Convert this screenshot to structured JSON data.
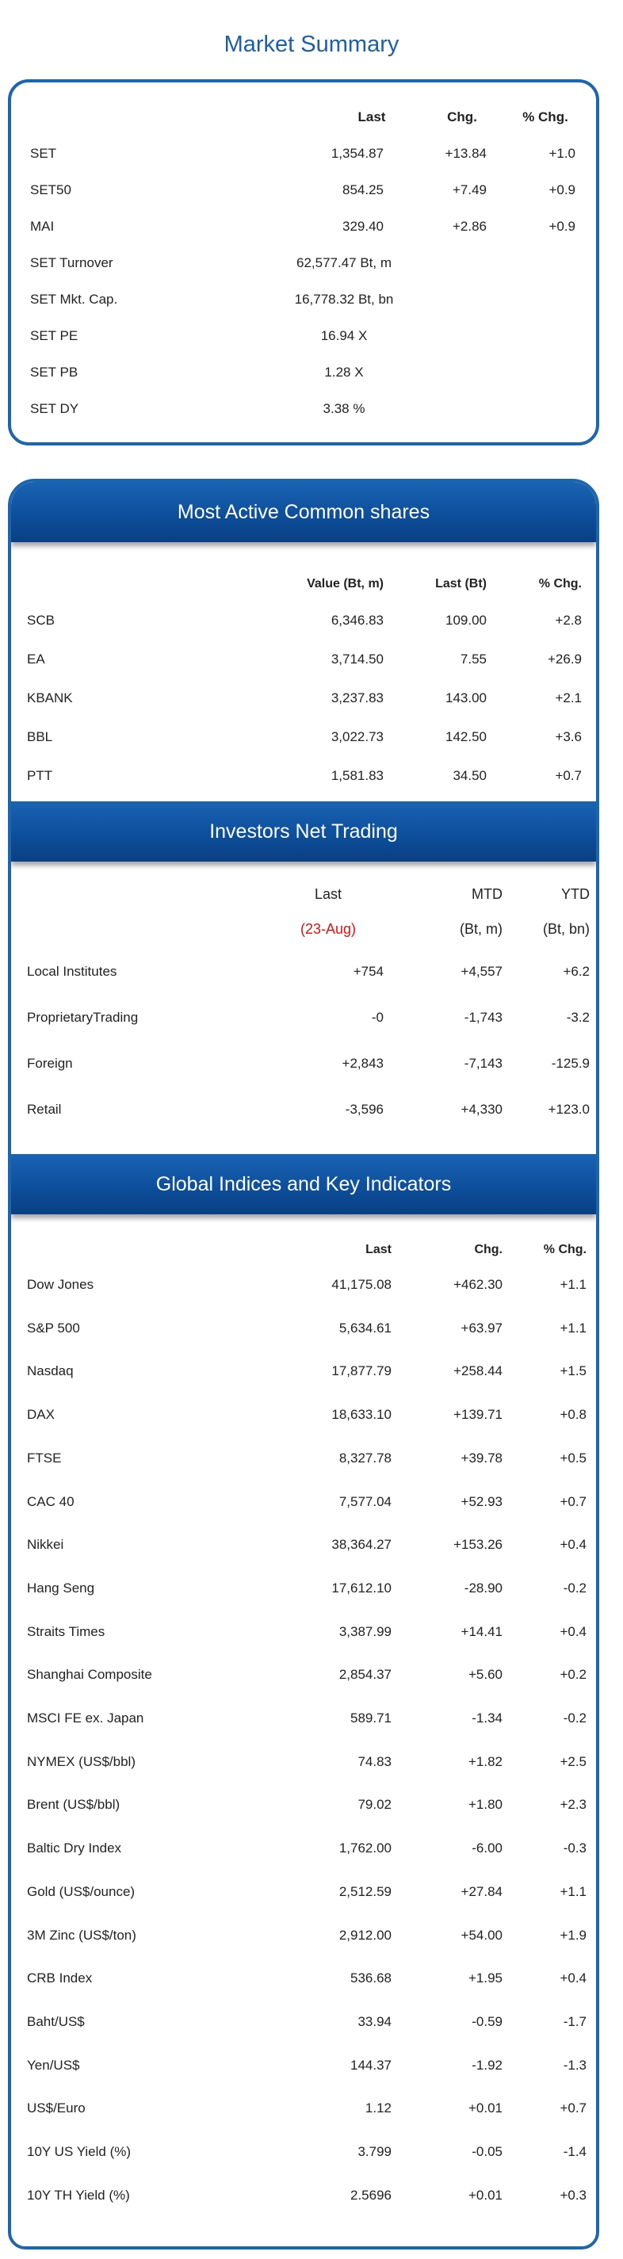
{
  "title": "Market Summary",
  "summary": {
    "headers": [
      "Last",
      "Chg.",
      "% Chg."
    ],
    "rows": [
      {
        "name": "SET",
        "last": "1,354.87",
        "chg": "+13.84",
        "pct": "+1.0"
      },
      {
        "name": "SET50",
        "last": "854.25",
        "chg": "+7.49",
        "pct": "+0.9"
      },
      {
        "name": "MAI",
        "last": "329.40",
        "chg": "+2.86",
        "pct": "+0.9"
      },
      {
        "name": "SET Turnover",
        "last": "62,577.47 Bt, m",
        "chg": "",
        "pct": ""
      },
      {
        "name": "SET Mkt. Cap.",
        "last": "16,778.32 Bt, bn",
        "chg": "",
        "pct": ""
      },
      {
        "name": "SET PE",
        "last": "16.94 X",
        "chg": "",
        "pct": ""
      },
      {
        "name": "SET PB",
        "last": "1.28 X",
        "chg": "",
        "pct": ""
      },
      {
        "name": "SET DY",
        "last": "3.38 %",
        "chg": "",
        "pct": ""
      }
    ]
  },
  "most_active": {
    "title": "Most Active Common shares",
    "headers": [
      "Value (Bt, m)",
      "Last (Bt)",
      "% Chg."
    ],
    "rows": [
      {
        "name": "SCB",
        "value": "6,346.83",
        "last": "109.00",
        "pct": "+2.8"
      },
      {
        "name": "EA",
        "value": "3,714.50",
        "last": "7.55",
        "pct": "+26.9"
      },
      {
        "name": "KBANK",
        "value": "3,237.83",
        "last": "143.00",
        "pct": "+2.1"
      },
      {
        "name": "BBL",
        "value": "3,022.73",
        "last": "142.50",
        "pct": "+3.6"
      },
      {
        "name": "PTT",
        "value": "1,581.83",
        "last": "34.50",
        "pct": "+0.7"
      }
    ]
  },
  "investors": {
    "title": "Investors Net Trading",
    "headers": [
      "Last",
      "MTD",
      "YTD"
    ],
    "subheaders": [
      "(23-Aug)",
      "(Bt, m)",
      "(Bt, bn)"
    ],
    "rows": [
      {
        "name": "Local Institutes",
        "last": "+754",
        "mtd": "+4,557",
        "ytd": "+6.2"
      },
      {
        "name": "ProprietaryTrading",
        "last": "-0",
        "mtd": "-1,743",
        "ytd": "-3.2"
      },
      {
        "name": "Foreign",
        "last": "+2,843",
        "mtd": "-7,143",
        "ytd": "-125.9"
      },
      {
        "name": "Retail",
        "last": "-3,596",
        "mtd": "+4,330",
        "ytd": "+123.0"
      }
    ]
  },
  "global": {
    "title": "Global Indices and Key Indicators",
    "headers": [
      "Last",
      "Chg.",
      "% Chg."
    ],
    "rows": [
      {
        "name": "Dow Jones",
        "last": "41,175.08",
        "chg": "+462.30",
        "pct": "+1.1"
      },
      {
        "name": "S&P 500",
        "last": "5,634.61",
        "chg": "+63.97",
        "pct": "+1.1"
      },
      {
        "name": "Nasdaq",
        "last": "17,877.79",
        "chg": "+258.44",
        "pct": "+1.5"
      },
      {
        "name": "DAX",
        "last": "18,633.10",
        "chg": "+139.71",
        "pct": "+0.8"
      },
      {
        "name": "FTSE",
        "last": "8,327.78",
        "chg": "+39.78",
        "pct": "+0.5"
      },
      {
        "name": "CAC 40",
        "last": "7,577.04",
        "chg": "+52.93",
        "pct": "+0.7"
      },
      {
        "name": "Nikkei",
        "last": "38,364.27",
        "chg": "+153.26",
        "pct": "+0.4"
      },
      {
        "name": "Hang Seng",
        "last": "17,612.10",
        "chg": "-28.90",
        "pct": "-0.2"
      },
      {
        "name": "Straits Times",
        "last": "3,387.99",
        "chg": "+14.41",
        "pct": "+0.4"
      },
      {
        "name": "Shanghai Composite",
        "last": "2,854.37",
        "chg": "+5.60",
        "pct": "+0.2"
      },
      {
        "name": "MSCI FE ex. Japan",
        "last": "589.71",
        "chg": "-1.34",
        "pct": "-0.2"
      },
      {
        "name": "NYMEX (US$/bbl)",
        "last": "74.83",
        "chg": "+1.82",
        "pct": "+2.5"
      },
      {
        "name": "Brent (US$/bbl)",
        "last": "79.02",
        "chg": "+1.80",
        "pct": "+2.3"
      },
      {
        "name": "Baltic Dry Index",
        "last": "1,762.00",
        "chg": "-6.00",
        "pct": "-0.3"
      },
      {
        "name": "Gold (US$/ounce)",
        "last": "2,512.59",
        "chg": "+27.84",
        "pct": "+1.1"
      },
      {
        "name": "3M Zinc (US$/ton)",
        "last": "2,912.00",
        "chg": "+54.00",
        "pct": "+1.9"
      },
      {
        "name": "CRB Index",
        "last": "536.68",
        "chg": "+1.95",
        "pct": "+0.4"
      },
      {
        "name": "Baht/US$",
        "last": "33.94",
        "chg": "-0.59",
        "pct": "-1.7"
      },
      {
        "name": "Yen/US$",
        "last": "144.37",
        "chg": "-1.92",
        "pct": "-1.3"
      },
      {
        "name": "US$/Euro",
        "last": "1.12",
        "chg": "+0.01",
        "pct": "+0.7"
      },
      {
        "name": "10Y US Yield (%)",
        "last": "3.799",
        "chg": "-0.05",
        "pct": "-1.4"
      },
      {
        "name": "10Y TH Yield (%)",
        "last": "2.5696",
        "chg": "+0.01",
        "pct": "+0.3"
      }
    ]
  }
}
